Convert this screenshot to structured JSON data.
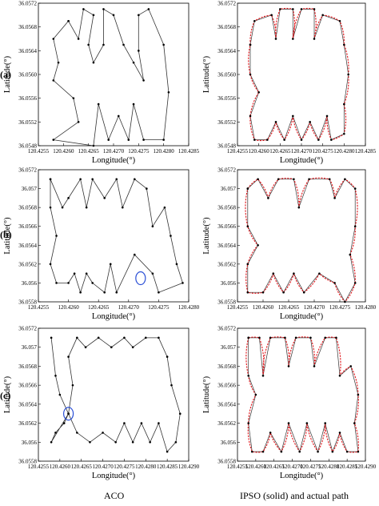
{
  "row_labels": [
    "(a)",
    "(b)",
    "(c)"
  ],
  "captions": {
    "left": "ACO",
    "right": "IPSO (solid) and actual path"
  },
  "colors": {
    "path": "#333333",
    "actual": "#e0161b",
    "node": "#000000",
    "marker": "#2a4fd6",
    "axis": "#000000"
  },
  "chart_data": [
    {
      "type": "line",
      "panel": "a-ACO",
      "xlabel": "Longitude(°)",
      "ylabel": "Latitude(°)",
      "xlim": [
        120.4255,
        120.4285
      ],
      "ylim": [
        36.0548,
        36.0572
      ],
      "xticks": [
        "120.4255",
        "120.4260",
        "120.4265",
        "120.4270",
        "120.4275",
        "120.4280",
        "120.4285"
      ],
      "yticks": [
        "36.0548",
        "36.0552",
        "36.0556",
        "36.0560",
        "36.0564",
        "36.0568",
        "36.0572"
      ],
      "series": [
        {
          "points": [
            [
              120.4261,
              36.0569
            ],
            [
              120.4258,
              36.0566
            ],
            [
              120.4259,
              36.0562
            ],
            [
              120.4258,
              36.0559
            ],
            [
              120.4262,
              36.0556
            ],
            [
              120.4263,
              36.0552
            ],
            [
              120.4258,
              36.0549
            ],
            [
              120.4266,
              36.0548
            ],
            [
              120.4267,
              36.0555
            ],
            [
              120.4269,
              36.0549
            ],
            [
              120.4271,
              36.0553
            ],
            [
              120.4273,
              36.0549
            ],
            [
              120.4274,
              36.0555
            ],
            [
              120.4276,
              36.0549
            ],
            [
              120.428,
              36.0549
            ],
            [
              120.4281,
              36.0557
            ],
            [
              120.428,
              36.0565
            ],
            [
              120.4277,
              36.0571
            ],
            [
              120.4275,
              36.057
            ],
            [
              120.4275,
              36.0564
            ],
            [
              120.4276,
              36.0559
            ],
            [
              120.4274,
              36.0562
            ],
            [
              120.4272,
              36.0565
            ],
            [
              120.427,
              36.057
            ],
            [
              120.4268,
              36.0571
            ],
            [
              120.4268,
              36.0565
            ],
            [
              120.4266,
              36.0562
            ],
            [
              120.4265,
              36.0565
            ],
            [
              120.4266,
              36.057
            ],
            [
              120.4264,
              36.0571
            ],
            [
              120.4263,
              36.0566
            ],
            [
              120.4261,
              36.0569
            ]
          ]
        }
      ]
    },
    {
      "type": "line",
      "panel": "a-IPSO",
      "xlabel": "Longitude(°)",
      "ylabel": "Latitude(°)",
      "xlim": [
        120.4255,
        120.4285
      ],
      "ylim": [
        36.0548,
        36.0572
      ],
      "xticks": [
        "120.4255",
        "120.4260",
        "120.4265",
        "120.4270",
        "120.4275",
        "120.4280",
        "120.4285"
      ],
      "yticks": [
        "36.0548",
        "36.0552",
        "36.0556",
        "36.0560",
        "36.0564",
        "36.0568",
        "36.0572"
      ],
      "series": [
        {
          "points": [
            [
              120.4258,
              36.0565
            ],
            [
              120.4259,
              36.0569
            ],
            [
              120.4263,
              36.057
            ],
            [
              120.4264,
              36.0566
            ],
            [
              120.4265,
              36.0571
            ],
            [
              120.4268,
              36.0571
            ],
            [
              120.4268,
              36.0566
            ],
            [
              120.427,
              36.0571
            ],
            [
              120.4273,
              36.0571
            ],
            [
              120.4273,
              36.0566
            ],
            [
              120.4275,
              36.057
            ],
            [
              120.4279,
              36.0569
            ],
            [
              120.428,
              36.0565
            ],
            [
              120.4281,
              36.056
            ],
            [
              120.428,
              36.0555
            ],
            [
              120.428,
              36.055
            ],
            [
              120.4277,
              36.0549
            ],
            [
              120.4276,
              36.0553
            ],
            [
              120.4274,
              36.0549
            ],
            [
              120.4272,
              36.0552
            ],
            [
              120.427,
              36.0549
            ],
            [
              120.4268,
              36.0553
            ],
            [
              120.4266,
              36.0549
            ],
            [
              120.4264,
              36.0552
            ],
            [
              120.4262,
              36.0549
            ],
            [
              120.4259,
              36.0549
            ],
            [
              120.4258,
              36.0553
            ],
            [
              120.426,
              36.0557
            ],
            [
              120.4258,
              36.056
            ],
            [
              120.4258,
              36.0565
            ]
          ]
        }
      ]
    },
    {
      "type": "line",
      "panel": "b-ACO",
      "xlabel": "Longitude(°)",
      "ylabel": "Latitude(°)",
      "xlim": [
        120.4255,
        120.428
      ],
      "ylim": [
        36.0558,
        36.0572
      ],
      "xticks": [
        "120.4255",
        "120.4260",
        "120.4265",
        "120.4270",
        "120.4275",
        "120.4280"
      ],
      "yticks": [
        "36.0558",
        "36.056",
        "36.0562",
        "36.0564",
        "36.0566",
        "36.0568",
        "36.057",
        "36.0572"
      ],
      "series": [
        {
          "points": [
            [
              120.4257,
              36.0571
            ],
            [
              120.4259,
              36.0568
            ],
            [
              120.426,
              36.0569
            ],
            [
              120.4262,
              36.0571
            ],
            [
              120.4263,
              36.0568
            ],
            [
              120.4264,
              36.0571
            ],
            [
              120.4266,
              36.0569
            ],
            [
              120.4268,
              36.0571
            ],
            [
              120.4269,
              36.0568
            ],
            [
              120.4271,
              36.0571
            ],
            [
              120.4273,
              36.057
            ],
            [
              120.4274,
              36.0566
            ],
            [
              120.4276,
              36.0568
            ],
            [
              120.4277,
              36.0565
            ],
            [
              120.4278,
              36.0562
            ],
            [
              120.4279,
              36.056
            ],
            [
              120.4275,
              36.0559
            ],
            [
              120.4274,
              36.0561
            ],
            [
              120.4271,
              36.0563
            ],
            [
              120.4268,
              36.0559
            ],
            [
              120.4267,
              36.0562
            ],
            [
              120.4266,
              36.0559
            ],
            [
              120.4264,
              36.056
            ],
            [
              120.4263,
              36.0561
            ],
            [
              120.4262,
              36.0559
            ],
            [
              120.4261,
              36.0561
            ],
            [
              120.426,
              36.056
            ],
            [
              120.4258,
              36.056
            ],
            [
              120.4257,
              36.0562
            ],
            [
              120.4258,
              36.0565
            ],
            [
              120.4257,
              36.0568
            ],
            [
              120.4257,
              36.0571
            ]
          ]
        }
      ],
      "highlight": {
        "x": 120.4272,
        "y": 36.05605
      }
    },
    {
      "type": "line",
      "panel": "b-IPSO",
      "xlabel": "Longitude(°)",
      "ylabel": "Latitude(°)",
      "xlim": [
        120.4255,
        120.428
      ],
      "ylim": [
        36.0558,
        36.0572
      ],
      "xticks": [
        "120.4255",
        "120.4260",
        "120.4265",
        "120.4270",
        "120.4275",
        "120.4280"
      ],
      "yticks": [
        "36.0558",
        "36.056",
        "36.0562",
        "36.0564",
        "36.0566",
        "36.0568",
        "36.057",
        "36.0572"
      ],
      "series": [
        {
          "points": [
            [
              120.4257,
              36.057
            ],
            [
              120.4259,
              36.0571
            ],
            [
              120.4261,
              36.0569
            ],
            [
              120.4263,
              36.0571
            ],
            [
              120.4266,
              36.0571
            ],
            [
              120.4267,
              36.0568
            ],
            [
              120.4269,
              36.0571
            ],
            [
              120.4273,
              36.0571
            ],
            [
              120.4274,
              36.0569
            ],
            [
              120.4276,
              36.0571
            ],
            [
              120.4278,
              36.057
            ],
            [
              120.4278,
              36.0566
            ],
            [
              120.4277,
              36.0563
            ],
            [
              120.4278,
              36.056
            ],
            [
              120.4276,
              36.0558
            ],
            [
              120.4274,
              36.056
            ],
            [
              120.4271,
              36.0561
            ],
            [
              120.4268,
              36.0559
            ],
            [
              120.4266,
              36.0561
            ],
            [
              120.4264,
              36.0559
            ],
            [
              120.4262,
              36.0561
            ],
            [
              120.426,
              36.0559
            ],
            [
              120.4257,
              36.0559
            ],
            [
              120.4257,
              36.0562
            ],
            [
              120.4259,
              36.0564
            ],
            [
              120.4257,
              36.0566
            ],
            [
              120.4257,
              36.057
            ]
          ]
        }
      ]
    },
    {
      "type": "line",
      "panel": "c-ACO",
      "xlabel": "Longitude(°)",
      "ylabel": "Latitude(°)",
      "xlim": [
        120.4255,
        120.429
      ],
      "ylim": [
        36.0558,
        36.0572
      ],
      "xticks": [
        "120.4255",
        "120.4260",
        "120.4265",
        "120.4270",
        "120.4275",
        "120.4280",
        "120.4285",
        "120.4290"
      ],
      "yticks": [
        "36.0558",
        "36.056",
        "36.0562",
        "36.0564",
        "36.0566",
        "36.0568",
        "36.057",
        "36.0572"
      ],
      "series": [
        {
          "points": [
            [
              120.4258,
              36.0571
            ],
            [
              120.4259,
              36.0567
            ],
            [
              120.426,
              36.0565
            ],
            [
              120.4262,
              36.0563
            ],
            [
              120.4261,
              36.0562
            ],
            [
              120.4259,
              36.0561
            ],
            [
              120.4258,
              36.056
            ],
            [
              120.4262,
              36.0563
            ],
            [
              120.4263,
              36.0566
            ],
            [
              120.4262,
              36.0569
            ],
            [
              120.4264,
              36.0571
            ],
            [
              120.4266,
              36.057
            ],
            [
              120.4269,
              36.0571
            ],
            [
              120.4272,
              36.057
            ],
            [
              120.4275,
              36.0571
            ],
            [
              120.4277,
              36.057
            ],
            [
              120.428,
              36.0571
            ],
            [
              120.4283,
              36.0571
            ],
            [
              120.4285,
              36.0569
            ],
            [
              120.4286,
              36.0566
            ],
            [
              120.4288,
              36.0563
            ],
            [
              120.4287,
              36.056
            ],
            [
              120.4285,
              36.0559
            ],
            [
              120.4283,
              36.0562
            ],
            [
              120.4281,
              36.056
            ],
            [
              120.4279,
              36.0562
            ],
            [
              120.4277,
              36.056
            ],
            [
              120.4275,
              36.0562
            ],
            [
              120.4273,
              36.056
            ],
            [
              120.427,
              36.0561
            ],
            [
              120.4267,
              36.056
            ],
            [
              120.4264,
              36.0561
            ],
            [
              120.4262,
              36.0563
            ]
          ]
        }
      ],
      "highlight": {
        "x": 120.4262,
        "y": 36.0563
      }
    },
    {
      "type": "line",
      "panel": "c-IPSO",
      "xlabel": "Longitude(°)",
      "ylabel": "Latitude(°)",
      "xlim": [
        120.4255,
        120.429
      ],
      "ylim": [
        36.0558,
        36.0572
      ],
      "xticks": [
        "120.4255",
        "120.4260",
        "120.4265",
        "120.4270",
        "120.4275",
        "120.4280",
        "120.4285",
        "120.4290"
      ],
      "yticks": [
        "36.0558",
        "36.056",
        "36.0562",
        "36.0564",
        "36.0566",
        "36.0568",
        "36.057",
        "36.0572"
      ],
      "series": [
        {
          "points": [
            [
              120.4258,
              36.0571
            ],
            [
              120.4261,
              36.0571
            ],
            [
              120.4262,
              36.0567
            ],
            [
              120.4264,
              36.0571
            ],
            [
              120.4268,
              36.0571
            ],
            [
              120.4269,
              36.0568
            ],
            [
              120.4271,
              36.0571
            ],
            [
              120.4275,
              36.0571
            ],
            [
              120.4276,
              36.0568
            ],
            [
              120.4279,
              36.0571
            ],
            [
              120.4282,
              36.0571
            ],
            [
              120.4283,
              36.0567
            ],
            [
              120.4286,
              36.0568
            ],
            [
              120.4288,
              36.0565
            ],
            [
              120.4287,
              36.0562
            ],
            [
              120.4288,
              36.0559
            ],
            [
              120.4285,
              36.0559
            ],
            [
              120.4283,
              36.0561
            ],
            [
              120.4281,
              36.0559
            ],
            [
              120.4279,
              36.0562
            ],
            [
              120.4277,
              36.0559
            ],
            [
              120.4274,
              36.0562
            ],
            [
              120.4272,
              36.0559
            ],
            [
              120.4269,
              36.0562
            ],
            [
              120.4267,
              36.0559
            ],
            [
              120.4264,
              36.0561
            ],
            [
              120.4262,
              36.0559
            ],
            [
              120.4259,
              36.0559
            ],
            [
              120.4258,
              36.0562
            ],
            [
              120.426,
              36.0565
            ],
            [
              120.4258,
              36.0567
            ],
            [
              120.4258,
              36.0571
            ]
          ]
        }
      ]
    }
  ]
}
